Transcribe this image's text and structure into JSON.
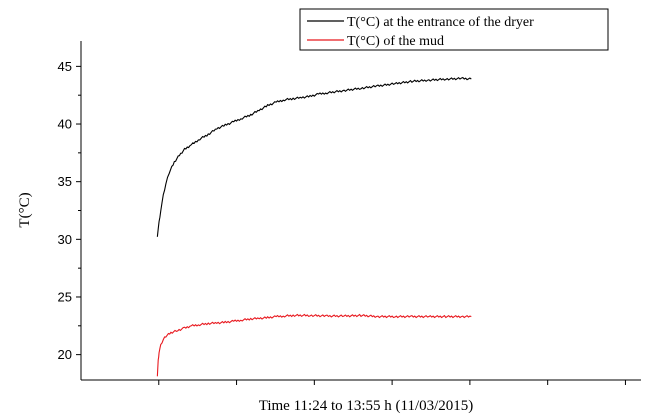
{
  "chart_data": {
    "type": "line",
    "xlabel": "Time 11:24 to 13:55 h (11/03/2015)",
    "ylabel": "T(°C)",
    "ylim": [
      17.8,
      47.2
    ],
    "y_ticks": [
      20,
      25,
      30,
      35,
      40,
      45
    ],
    "x_tick_labels": [],
    "x_ticks_count": 7,
    "legend_position": "top-right",
    "grid": false,
    "series": [
      {
        "name": "T(°C) at the entrance of the dryer",
        "color": "#000000",
        "points": [
          [
            0,
            30.3
          ],
          [
            0.01,
            31.5
          ],
          [
            0.02,
            32.5
          ],
          [
            0.035,
            33.8
          ],
          [
            0.05,
            34.8
          ],
          [
            0.07,
            35.8
          ],
          [
            0.1,
            36.7
          ],
          [
            0.13,
            37.3
          ],
          [
            0.16,
            37.8
          ],
          [
            0.2,
            38.2
          ],
          [
            0.25,
            38.7
          ],
          [
            0.3,
            39.1
          ],
          [
            0.35,
            39.6
          ],
          [
            0.4,
            39.9
          ],
          [
            0.45,
            40.2
          ],
          [
            0.5,
            40.5
          ],
          [
            0.55,
            40.8
          ],
          [
            0.6,
            41.2
          ],
          [
            0.65,
            41.6
          ],
          [
            0.7,
            41.9
          ],
          [
            0.75,
            42.1
          ],
          [
            0.8,
            42.2
          ],
          [
            0.85,
            42.3
          ],
          [
            0.9,
            42.4
          ],
          [
            0.95,
            42.6
          ],
          [
            1.0,
            42.7
          ],
          [
            1.1,
            42.9
          ],
          [
            1.2,
            43.1
          ],
          [
            1.3,
            43.3
          ],
          [
            1.4,
            43.5
          ],
          [
            1.5,
            43.7
          ],
          [
            1.6,
            43.8
          ],
          [
            1.7,
            43.9
          ],
          [
            1.8,
            43.95
          ],
          [
            1.85,
            43.9
          ]
        ]
      },
      {
        "name": "T(°C) of the mud",
        "color": "#e8191f",
        "points": [
          [
            0,
            18.2
          ],
          [
            0.005,
            19.5
          ],
          [
            0.01,
            20.2
          ],
          [
            0.02,
            20.8
          ],
          [
            0.035,
            21.3
          ],
          [
            0.05,
            21.6
          ],
          [
            0.08,
            21.9
          ],
          [
            0.12,
            22.1
          ],
          [
            0.16,
            22.3
          ],
          [
            0.2,
            22.5
          ],
          [
            0.25,
            22.6
          ],
          [
            0.3,
            22.7
          ],
          [
            0.35,
            22.75
          ],
          [
            0.4,
            22.8
          ],
          [
            0.45,
            22.9
          ],
          [
            0.5,
            23.0
          ],
          [
            0.55,
            23.1
          ],
          [
            0.6,
            23.15
          ],
          [
            0.65,
            23.2
          ],
          [
            0.7,
            23.3
          ],
          [
            0.75,
            23.35
          ],
          [
            0.8,
            23.4
          ],
          [
            0.9,
            23.4
          ],
          [
            1.0,
            23.35
          ],
          [
            1.1,
            23.35
          ],
          [
            1.2,
            23.4
          ],
          [
            1.3,
            23.3
          ],
          [
            1.4,
            23.3
          ],
          [
            1.5,
            23.3
          ],
          [
            1.6,
            23.3
          ],
          [
            1.7,
            23.3
          ],
          [
            1.8,
            23.3
          ],
          [
            1.85,
            23.3
          ]
        ]
      }
    ]
  }
}
